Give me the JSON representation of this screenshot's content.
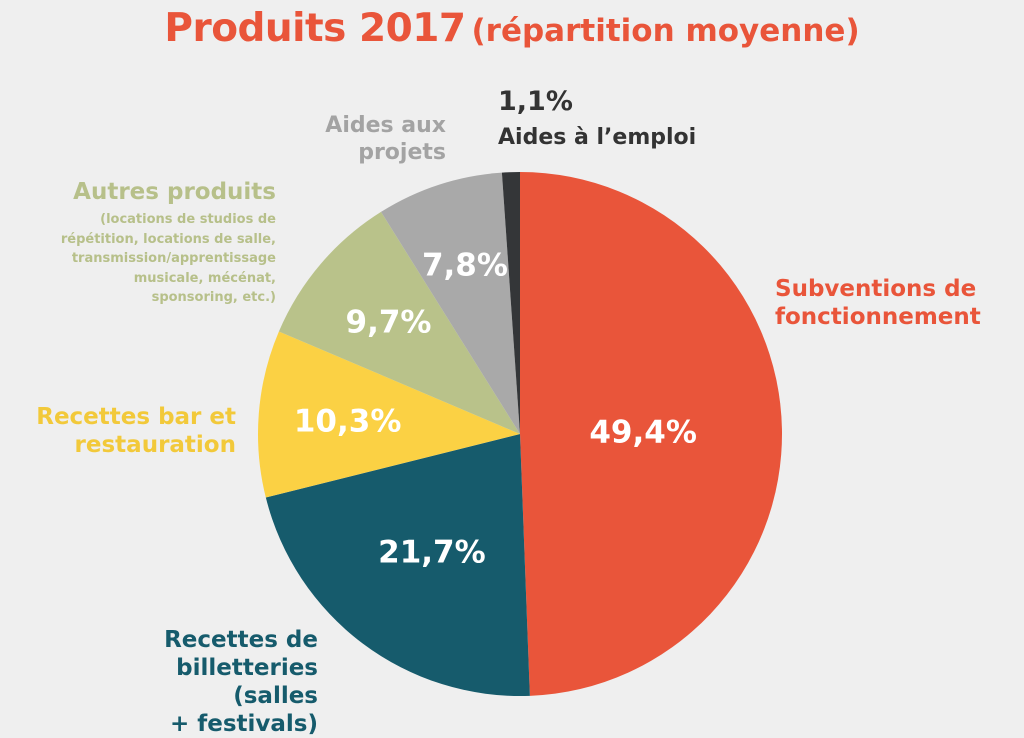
{
  "title": {
    "main": "Produits 2017",
    "sub": "(répartition moyenne)"
  },
  "chart_data": {
    "type": "pie",
    "title": "Produits 2017 (répartition moyenne)",
    "unit": "%",
    "slices": [
      {
        "label": "Subventions de fonctionnement",
        "value": 49.4,
        "display": "49,4%",
        "color": "#e9553a"
      },
      {
        "label": "Recettes de billetteries (salles + festivals)",
        "value": 21.7,
        "display": "21,7%",
        "color": "#165b6c"
      },
      {
        "label": "Recettes bar et restauration",
        "value": 10.3,
        "display": "10,3%",
        "color": "#fbd144"
      },
      {
        "label": "Autres produits",
        "note": "(locations de studios de répétition, locations de salle, transmission/apprentissage musicale, mécénat, sponsoring, etc.)",
        "value": 9.7,
        "display": "9,7%",
        "color": "#b9c28a"
      },
      {
        "label": "Aides aux projets",
        "value": 7.8,
        "display": "7,8%",
        "color": "#a9a9a9"
      },
      {
        "label": "Aides à l'emploi",
        "value": 1.1,
        "display": "1,1%",
        "color": "#343638"
      }
    ]
  },
  "labels": {
    "subventions": [
      "Subventions de",
      "fonctionnement"
    ],
    "billetterie": [
      "Recettes de",
      "billetteries (salles",
      "+ festivals)"
    ],
    "bar": [
      "Recettes bar et",
      "restauration"
    ],
    "autres": "Autres produits",
    "autres_note": [
      "(locations de studios de",
      "répétition, locations de salle,",
      "transmission/apprentissage",
      "musicale, mécénat,",
      "sponsoring, etc.)"
    ],
    "aides_projets": [
      "Aides aux",
      "projets"
    ],
    "aides_emploi_value": "1,1%",
    "aides_emploi": "Aides à l’emploi"
  }
}
